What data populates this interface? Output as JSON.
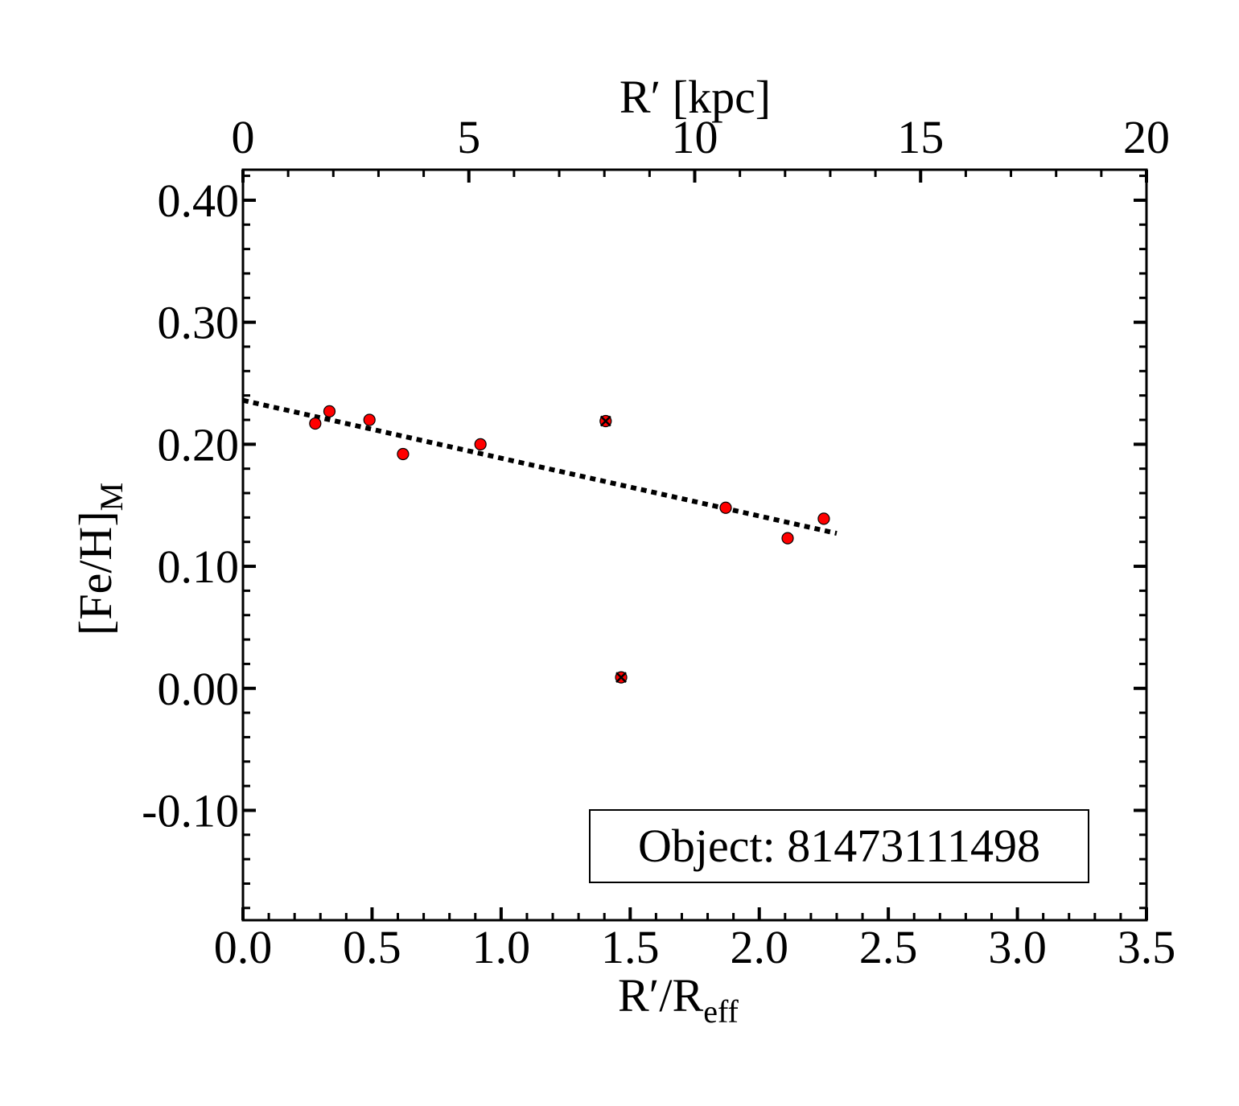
{
  "chart_data": {
    "type": "scatter",
    "xlabel": "R′/R",
    "xlabel_sub": "eff",
    "ylabel": "[Fe/H]",
    "ylabel_sub": "M",
    "top_xlabel": "R′ [kpc]",
    "xlim": [
      0.0,
      3.5
    ],
    "ylim": [
      -0.19,
      0.425
    ],
    "top_xlim": [
      0,
      20
    ],
    "x_ticks": [
      "0.0",
      "0.5",
      "1.0",
      "1.5",
      "2.0",
      "2.5",
      "3.0",
      "3.5"
    ],
    "y_ticks": [
      "0.40",
      "0.30",
      "0.20",
      "0.10",
      "0.00",
      "-0.10"
    ],
    "top_ticks": [
      "0",
      "5",
      "10",
      "15",
      "20"
    ],
    "series": [
      {
        "marker": "red-circle",
        "color": "#ff0000",
        "points": [
          {
            "x": 0.28,
            "y": 0.217
          },
          {
            "x": 0.335,
            "y": 0.227
          },
          {
            "x": 0.49,
            "y": 0.22
          },
          {
            "x": 0.62,
            "y": 0.192
          },
          {
            "x": 0.92,
            "y": 0.2
          },
          {
            "x": 1.87,
            "y": 0.148
          },
          {
            "x": 2.11,
            "y": 0.123
          },
          {
            "x": 2.25,
            "y": 0.139
          }
        ]
      },
      {
        "marker": "red-circle-crossed",
        "color": "#ff0000",
        "points": [
          {
            "x": 1.405,
            "y": 0.219
          },
          {
            "x": 1.465,
            "y": 0.009
          }
        ]
      }
    ],
    "fit_line": {
      "style": "dotted",
      "color": "#000000",
      "x": [
        0.0,
        2.3
      ],
      "y": [
        0.236,
        0.127
      ]
    },
    "annotation": "Object: 81473111498",
    "annotation_position": "bottom-right",
    "grid": false,
    "legend": "none"
  }
}
